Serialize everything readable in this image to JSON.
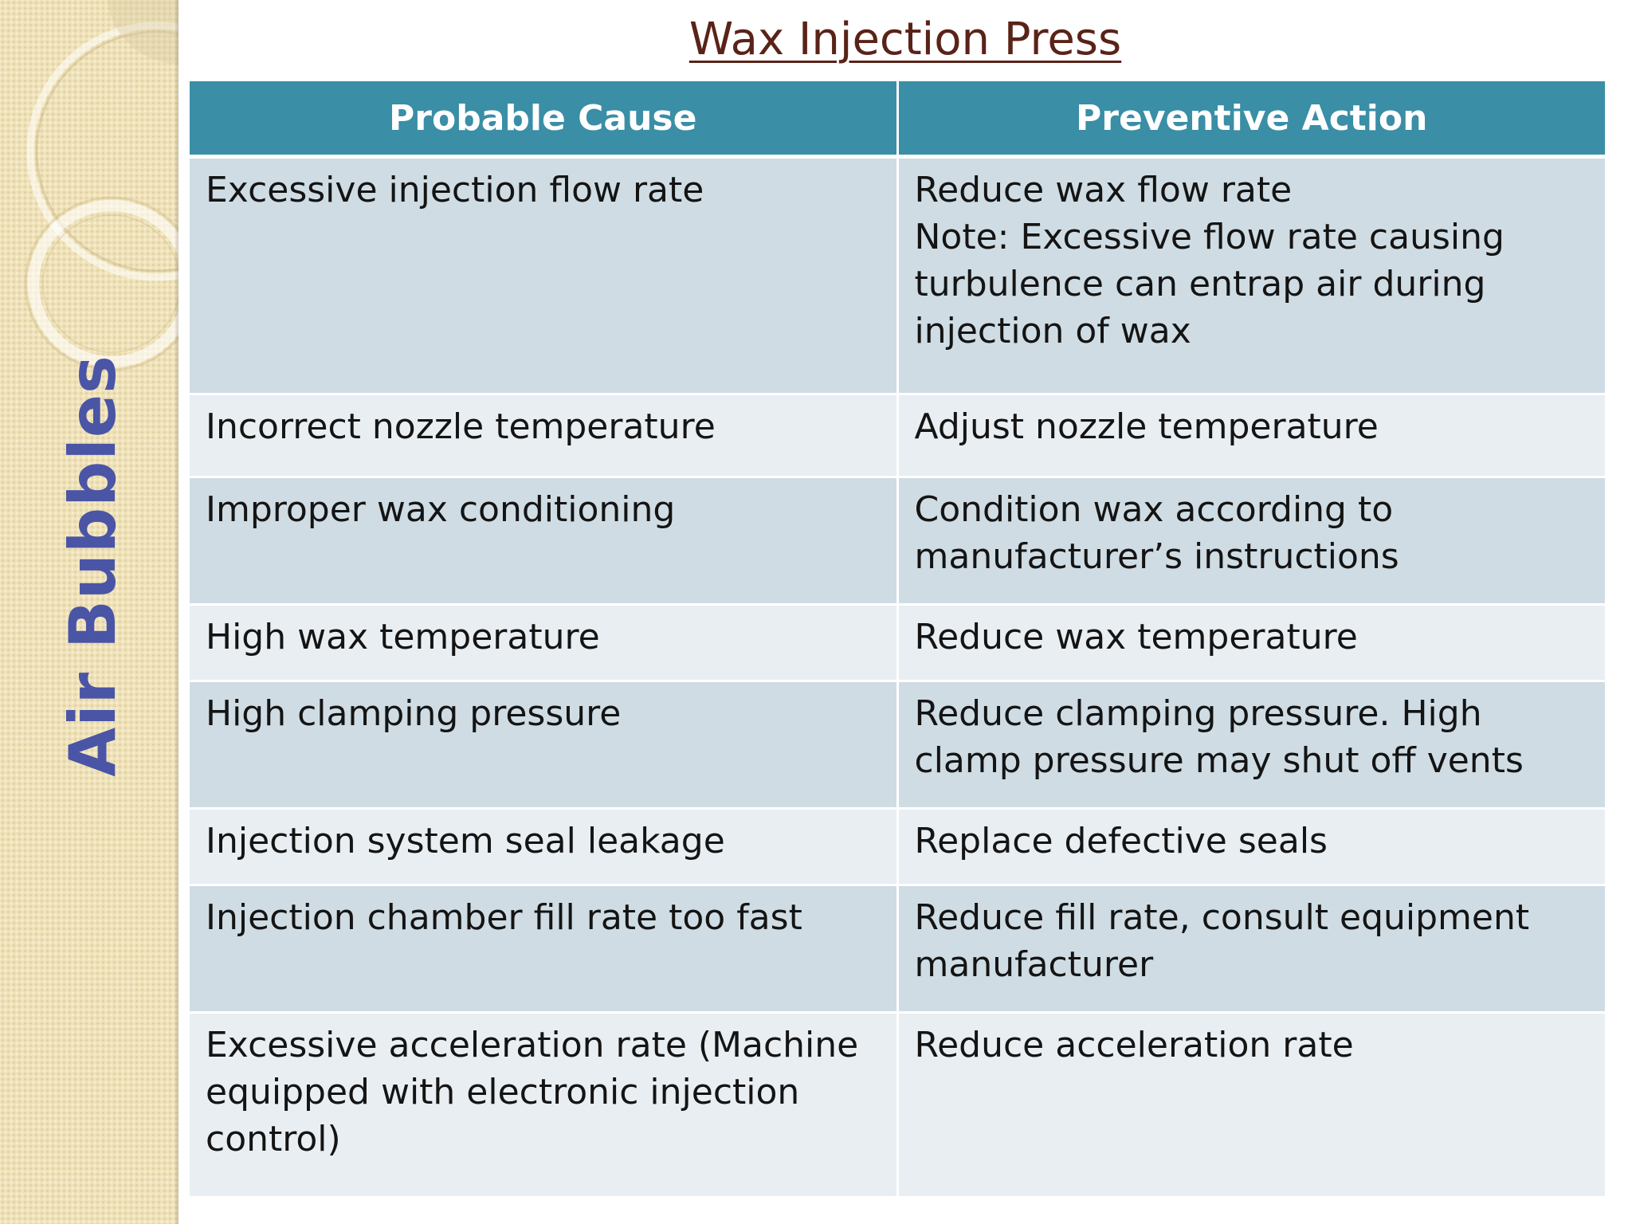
{
  "side_label": "Air Bubbles",
  "title": "Wax Injection Press",
  "table": {
    "headers": [
      "Probable Cause",
      "Preventive Action"
    ],
    "rows": [
      {
        "cause": "Excessive injection flow rate",
        "action": "Reduce wax flow rate",
        "action_note": "Note: Excessive flow rate causing turbulence can entrap air during injection of wax"
      },
      {
        "cause": "Incorrect nozzle temperature",
        "action": "Adjust nozzle temperature"
      },
      {
        "cause": "Improper wax conditioning",
        "action": "Condition wax according to manufacturer’s instructions"
      },
      {
        "cause": "High wax temperature",
        "action": "Reduce wax temperature"
      },
      {
        "cause": "High clamping pressure",
        "action": "Reduce clamping pressure. High clamp pressure may shut off vents"
      },
      {
        "cause": "Injection system seal leakage",
        "action": "Replace defective seals"
      },
      {
        "cause": "Injection chamber fill rate too fast",
        "action": "Reduce fill rate, consult equipment manufacturer"
      },
      {
        "cause": "Excessive acceleration rate (Machine equipped with electronic injection control)",
        "action": "Reduce acceleration rate"
      }
    ]
  },
  "colors": {
    "header_bg": "#3a8ea6",
    "row_odd_bg": "#cfdce3",
    "row_even_bg": "#e8eef2",
    "title_color": "#5a2318",
    "side_label_color": "#4a55a6",
    "side_panel_bg": "#efe2b9"
  }
}
